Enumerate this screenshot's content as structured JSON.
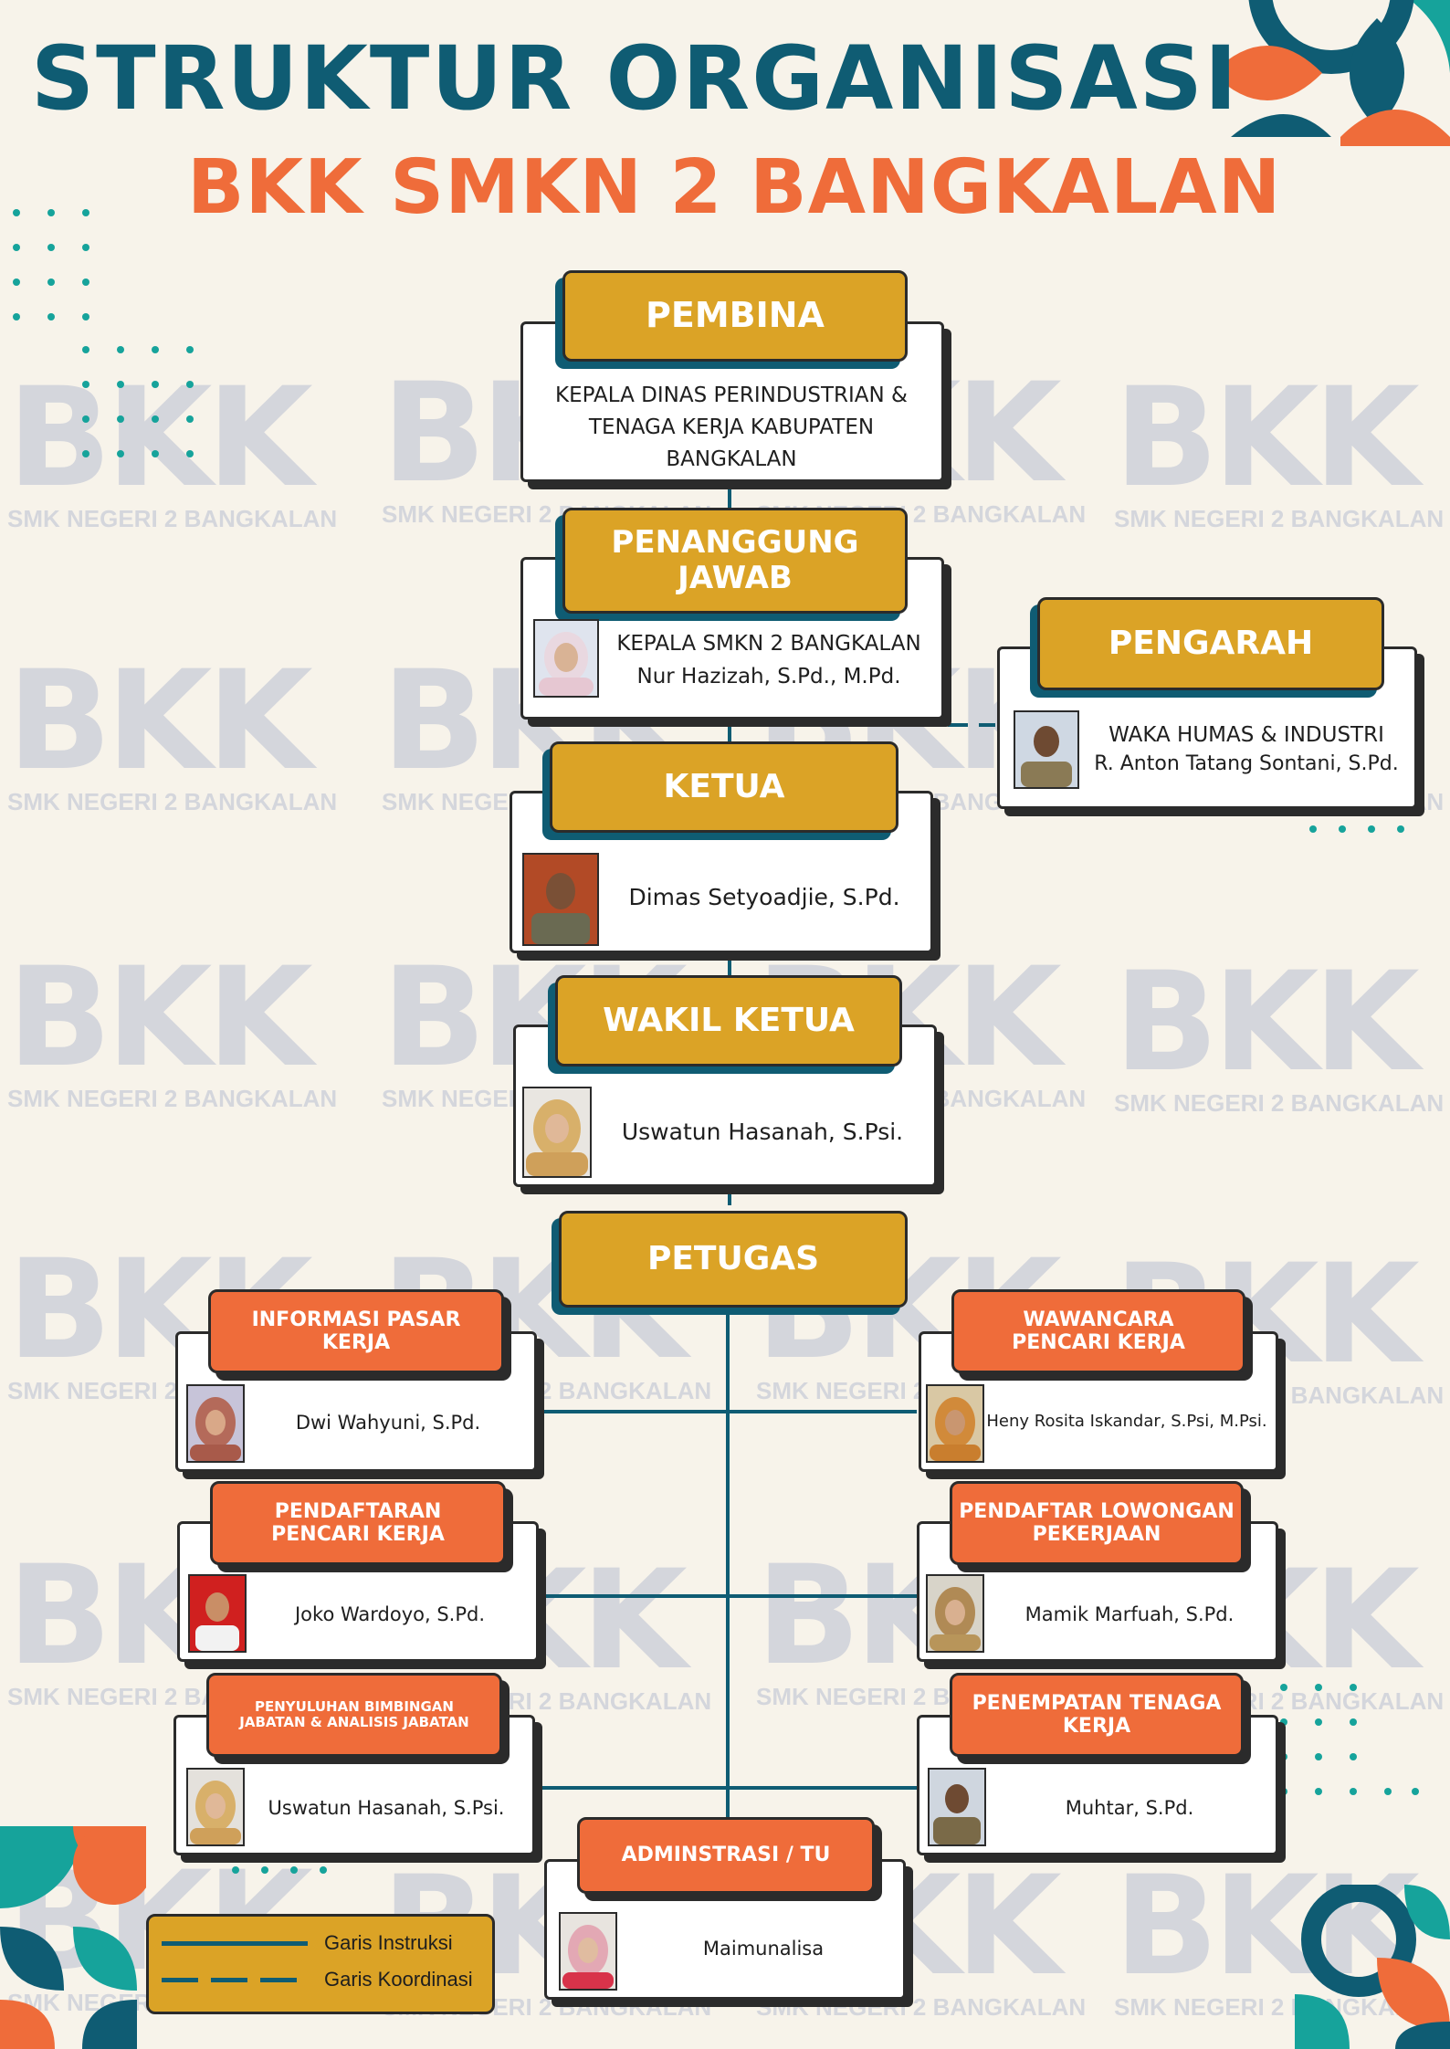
{
  "title": "STRUKTUR ORGANISASI",
  "subtitle": "BKK SMKN 2 BANGKALAN",
  "watermark": {
    "logo": "BKK",
    "school": "SMK NEGERI 2 BANGKALAN"
  },
  "colors": {
    "teal": "#0f5c73",
    "orange": "#ef6c3a",
    "gold": "#dba326"
  },
  "pembina": {
    "role": "PEMBINA",
    "line1": "KEPALA DINAS PERINDUSTRIAN &",
    "line2": "TENAGA KERJA KABUPATEN",
    "line3": "BANGKALAN"
  },
  "penanggung_jawab": {
    "role_line1": "PENANGGUNG",
    "role_line2": "JAWAB",
    "position": "KEPALA SMKN 2 BANGKALAN",
    "name": "Nur Hazizah, S.Pd., M.Pd."
  },
  "pengarah": {
    "role": "PENGARAH",
    "position": "WAKA HUMAS & INDUSTRI",
    "name": "R. Anton Tatang Sontani, S.Pd."
  },
  "ketua": {
    "role": "KETUA",
    "name": "Dimas Setyoadjie, S.Pd."
  },
  "wakil_ketua": {
    "role": "WAKIL KETUA",
    "name": "Uswatun Hasanah, S.Psi."
  },
  "petugas": {
    "role": "PETUGAS"
  },
  "staff": {
    "informasi": {
      "role_line1": "INFORMASI PASAR",
      "role_line2": "KERJA",
      "name": "Dwi Wahyuni, S.Pd."
    },
    "wawancara": {
      "role_line1": "WAWANCARA",
      "role_line2": "PENCARI KERJA",
      "name": "Heny Rosita Iskandar, S.Psi, M.Psi."
    },
    "pendaftaran": {
      "role_line1": "PENDAFTARAN",
      "role_line2": "PENCARI KERJA",
      "name": "Joko Wardoyo, S.Pd."
    },
    "pendaftar_lowongan": {
      "role_line1": "PENDAFTAR LOWONGAN",
      "role_line2": "PEKERJAAN",
      "name": "Mamik Marfuah, S.Pd."
    },
    "penyuluhan": {
      "role_line1": "PENYULUHAN BIMBINGAN",
      "role_line2": "JABATAN & ANALISIS JABATAN",
      "name": "Uswatun Hasanah, S.Psi."
    },
    "penempatan": {
      "role_line1": "PENEMPATAN TENAGA",
      "role_line2": "KERJA",
      "name": "Muhtar, S.Pd."
    },
    "administrasi": {
      "role": "ADMINSTRASI / TU",
      "name": "Maimunalisa"
    }
  },
  "legend": {
    "instruksi": "Garis Instruksi",
    "koordinasi": "Garis Koordinasi"
  }
}
